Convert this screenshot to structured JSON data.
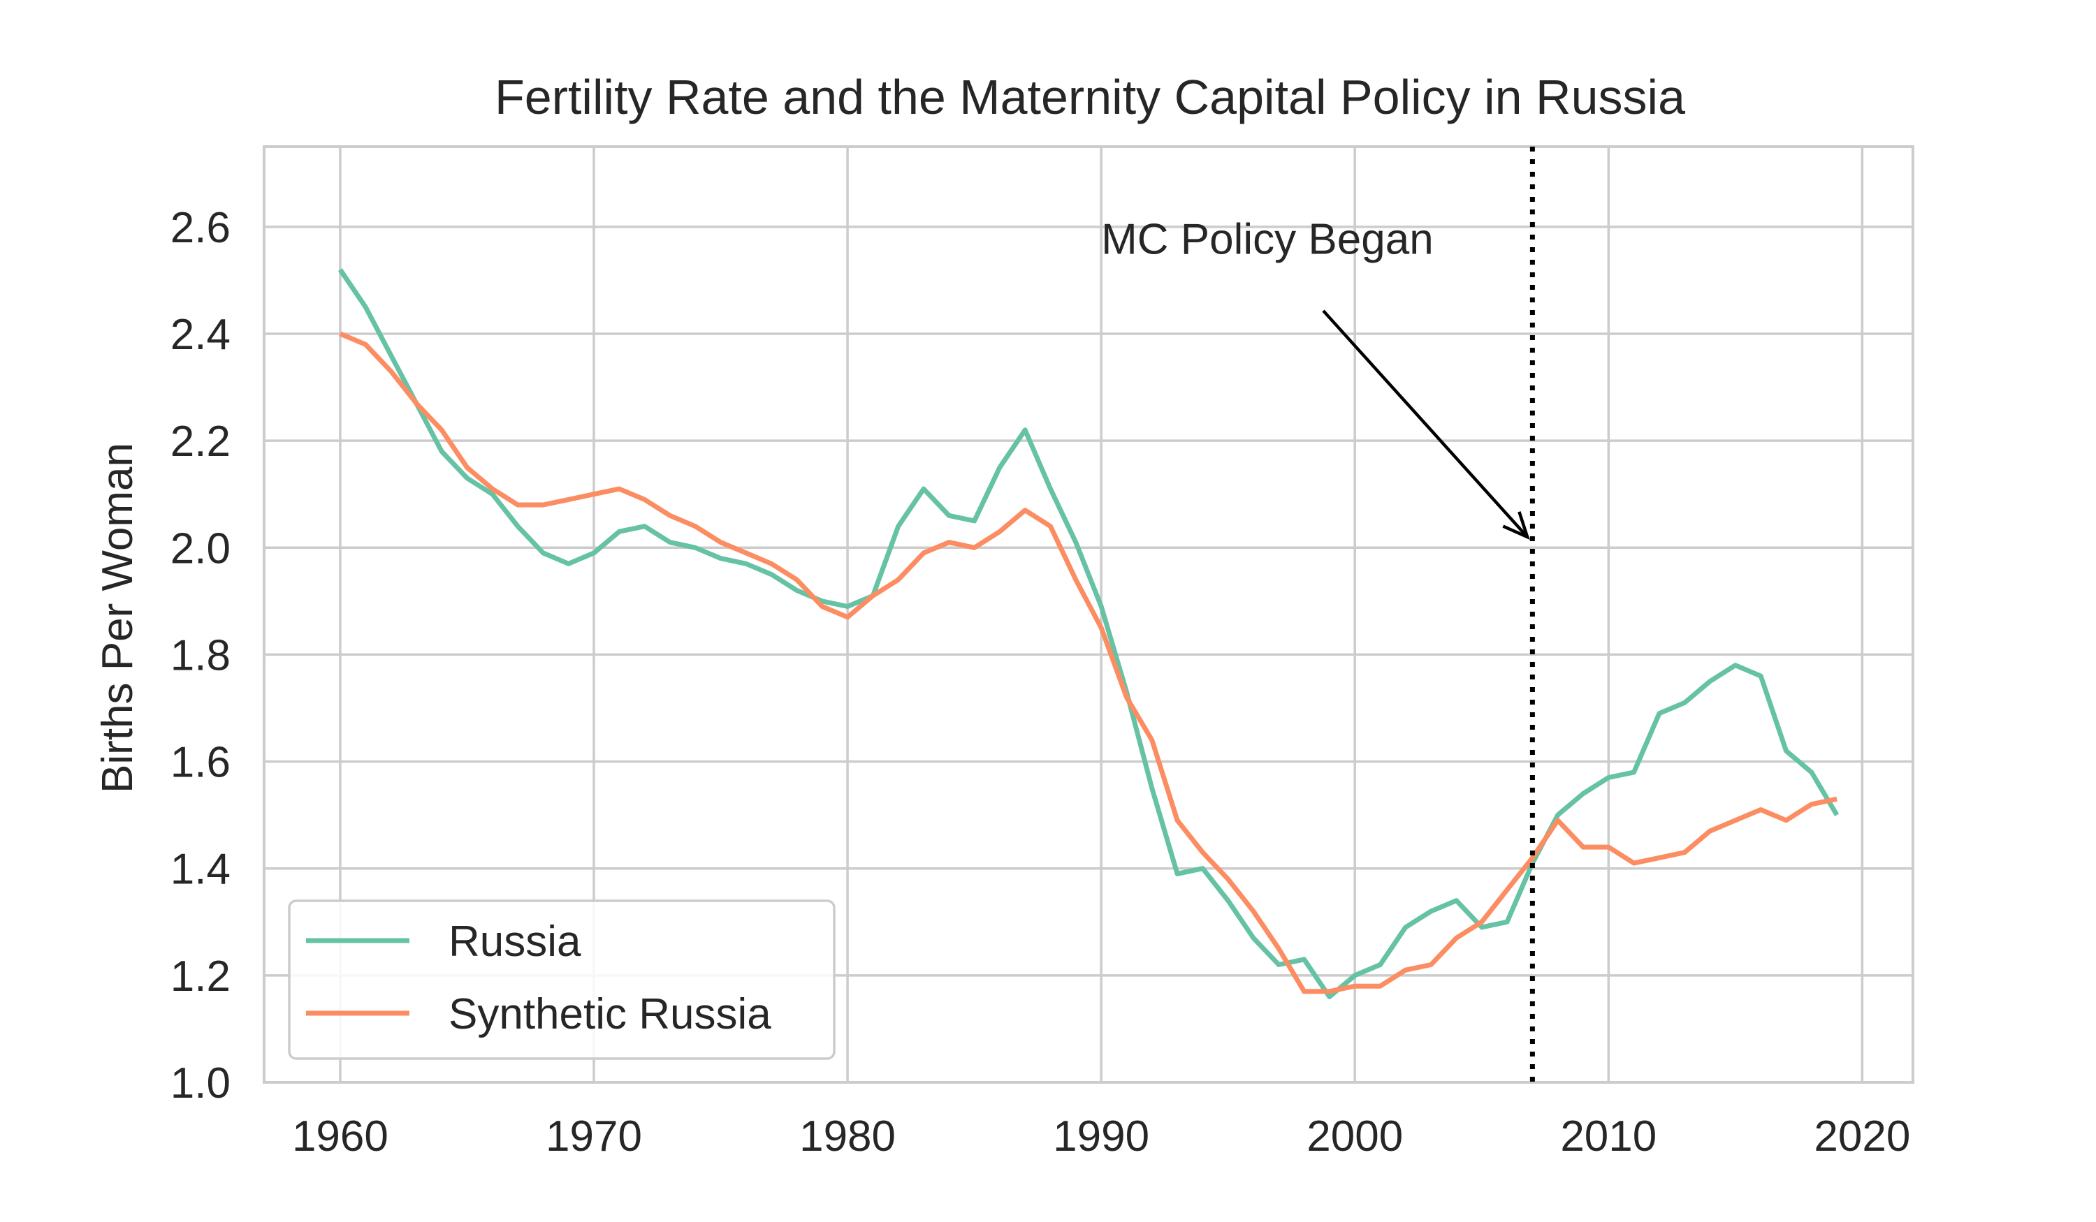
{
  "chart_data": {
    "type": "line",
    "title": "Fertility Rate and the Maternity Capital Policy in Russia",
    "xlabel": "",
    "ylabel": "Births Per Woman",
    "xlim": [
      1957,
      2022
    ],
    "ylim": [
      1.0,
      2.75
    ],
    "xticks": [
      1960,
      1970,
      1980,
      1990,
      2000,
      2010,
      2020
    ],
    "yticks": [
      1.0,
      1.2,
      1.4,
      1.6,
      1.8,
      2.0,
      2.2,
      2.4,
      2.6
    ],
    "grid": true,
    "legend_position": "lower-left",
    "x": [
      1960,
      1961,
      1962,
      1963,
      1964,
      1965,
      1966,
      1967,
      1968,
      1969,
      1970,
      1971,
      1972,
      1973,
      1974,
      1975,
      1976,
      1977,
      1978,
      1979,
      1980,
      1981,
      1982,
      1983,
      1984,
      1985,
      1986,
      1987,
      1988,
      1989,
      1990,
      1991,
      1992,
      1993,
      1994,
      1995,
      1996,
      1997,
      1998,
      1999,
      2000,
      2001,
      2002,
      2003,
      2004,
      2005,
      2006,
      2007,
      2008,
      2009,
      2010,
      2011,
      2012,
      2013,
      2014,
      2015,
      2016,
      2017,
      2018,
      2019
    ],
    "series": [
      {
        "name": "Russia",
        "color": "#66c2a5",
        "values": [
          2.52,
          2.45,
          2.36,
          2.27,
          2.18,
          2.13,
          2.1,
          2.04,
          1.99,
          1.97,
          1.99,
          2.03,
          2.04,
          2.01,
          2.0,
          1.98,
          1.97,
          1.95,
          1.92,
          1.9,
          1.89,
          1.91,
          2.04,
          2.11,
          2.06,
          2.05,
          2.15,
          2.22,
          2.11,
          2.01,
          1.89,
          1.73,
          1.55,
          1.39,
          1.4,
          1.34,
          1.27,
          1.22,
          1.23,
          1.16,
          1.2,
          1.22,
          1.29,
          1.32,
          1.34,
          1.29,
          1.3,
          1.41,
          1.5,
          1.54,
          1.57,
          1.58,
          1.69,
          1.71,
          1.75,
          1.78,
          1.76,
          1.62,
          1.58,
          1.5
        ]
      },
      {
        "name": "Synthetic Russia",
        "color": "#fc8d62",
        "values": [
          2.4,
          2.38,
          2.33,
          2.27,
          2.22,
          2.15,
          2.11,
          2.08,
          2.08,
          2.09,
          2.1,
          2.11,
          2.09,
          2.06,
          2.04,
          2.01,
          1.99,
          1.97,
          1.94,
          1.89,
          1.87,
          1.91,
          1.94,
          1.99,
          2.01,
          2.0,
          2.03,
          2.07,
          2.04,
          1.94,
          1.85,
          1.72,
          1.64,
          1.49,
          1.43,
          1.38,
          1.32,
          1.25,
          1.17,
          1.17,
          1.18,
          1.18,
          1.21,
          1.22,
          1.27,
          1.3,
          1.36,
          1.42,
          1.49,
          1.44,
          1.44,
          1.41,
          1.42,
          1.43,
          1.47,
          1.49,
          1.51,
          1.49,
          1.52,
          1.53
        ]
      }
    ],
    "policy_year": 2007,
    "annotation": {
      "text": "MC Policy Began",
      "text_x": 1990,
      "text_y": 2.5,
      "arrow_x": 2006.8,
      "arrow_y": 2.02
    }
  }
}
